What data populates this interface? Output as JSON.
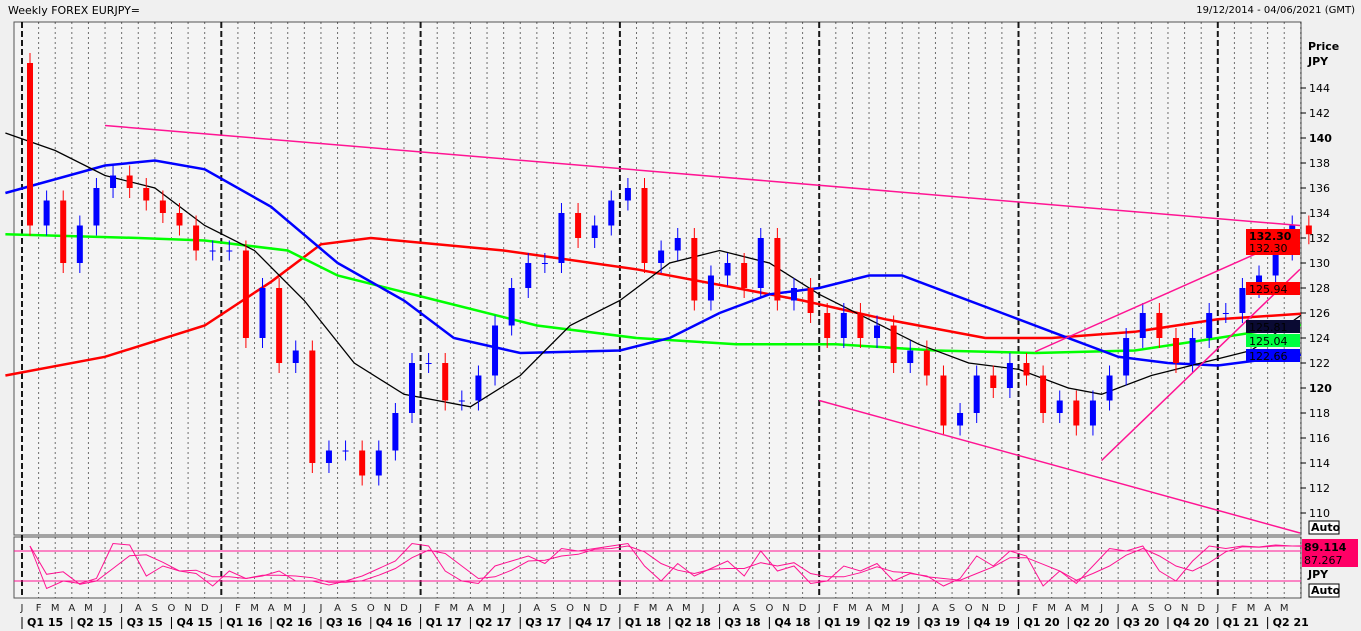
{
  "header": {
    "title": "Weekly FOREX EURJPY=",
    "date_range": "19/12/2014 - 04/06/2021 (GMT)"
  },
  "chart_data": {
    "type": "candlestick",
    "title": "Weekly FOREX EURJPY=",
    "ylabel": "Price",
    "yunit": "JPY",
    "ylim": [
      109,
      146
    ],
    "yticks": [
      110,
      112,
      114,
      116,
      118,
      120,
      122,
      124,
      126,
      128,
      130,
      132,
      134,
      136,
      138,
      140,
      142,
      144
    ],
    "yticks_bold": [
      120,
      140
    ],
    "grid": "vertical monthly",
    "months": [
      "2015-01",
      "2015-02",
      "2015-03",
      "2015-04",
      "2015-05",
      "2015-06",
      "2015-07",
      "2015-08",
      "2015-09",
      "2015-10",
      "2015-11",
      "2015-12",
      "2016-01",
      "2016-02",
      "2016-03",
      "2016-04",
      "2016-05",
      "2016-06",
      "2016-07",
      "2016-08",
      "2016-09",
      "2016-10",
      "2016-11",
      "2016-12",
      "2017-01",
      "2017-02",
      "2017-03",
      "2017-04",
      "2017-05",
      "2017-06",
      "2017-07",
      "2017-08",
      "2017-09",
      "2017-10",
      "2017-11",
      "2017-12",
      "2018-01",
      "2018-02",
      "2018-03",
      "2018-04",
      "2018-05",
      "2018-06",
      "2018-07",
      "2018-08",
      "2018-09",
      "2018-10",
      "2018-11",
      "2018-12",
      "2019-01",
      "2019-02",
      "2019-03",
      "2019-04",
      "2019-05",
      "2019-06",
      "2019-07",
      "2019-08",
      "2019-09",
      "2019-10",
      "2019-11",
      "2019-12",
      "2020-01",
      "2020-02",
      "2020-03",
      "2020-04",
      "2020-05",
      "2020-06",
      "2020-07",
      "2020-08",
      "2020-09",
      "2020-10",
      "2020-11",
      "2020-12",
      "2021-01",
      "2021-02",
      "2021-03",
      "2021-04",
      "2021-05",
      "2021-06"
    ],
    "start_open": 146,
    "closes": [
      133,
      135,
      130,
      133,
      136,
      137,
      136,
      135,
      134,
      133,
      131,
      131,
      131,
      124,
      128,
      122,
      123,
      114,
      115,
      115,
      113,
      115,
      118,
      122,
      122,
      119,
      119,
      121,
      125,
      128,
      130,
      130,
      134,
      132,
      133,
      135,
      136,
      130,
      131,
      132,
      127,
      129,
      130,
      128,
      132,
      127,
      128,
      126,
      124,
      126,
      124,
      125,
      122,
      123,
      121,
      117,
      118,
      121,
      120,
      122,
      121,
      118,
      119,
      117,
      119,
      121,
      124,
      126,
      124,
      122,
      124,
      126,
      126,
      128,
      129,
      131,
      133,
      132.3
    ],
    "series": [
      {
        "color": "#ff0000",
        "points": [
          [
            "2014-12",
            121
          ],
          [
            "2015-06",
            122.5
          ],
          [
            "2015-12",
            125
          ],
          [
            "2016-04",
            128.5
          ],
          [
            "2016-07",
            131.5
          ],
          [
            "2016-10",
            132
          ],
          [
            "2017-06",
            131
          ],
          [
            "2018-02",
            129.5
          ],
          [
            "2018-08",
            128
          ],
          [
            "2018-12",
            127
          ],
          [
            "2019-05",
            125.5
          ],
          [
            "2019-11",
            124
          ],
          [
            "2020-03",
            124
          ],
          [
            "2020-08",
            124.5
          ],
          [
            "2021-01",
            125.5
          ],
          [
            "2021-06",
            125.94
          ]
        ]
      },
      {
        "color": "#00ff00",
        "points": [
          [
            "2014-12",
            132.3
          ],
          [
            "2015-08",
            132
          ],
          [
            "2015-12",
            131.8
          ],
          [
            "2016-05",
            131
          ],
          [
            "2016-08",
            129
          ],
          [
            "2017-02",
            127
          ],
          [
            "2017-08",
            125
          ],
          [
            "2018-02",
            124
          ],
          [
            "2018-08",
            123.5
          ],
          [
            "2019-02",
            123.5
          ],
          [
            "2019-08",
            123
          ],
          [
            "2020-02",
            122.8
          ],
          [
            "2020-08",
            123
          ],
          [
            "2021-01",
            124
          ],
          [
            "2021-06",
            125.04
          ]
        ]
      },
      {
        "color": "#0000ff",
        "points": [
          [
            "2014-12",
            135.6
          ],
          [
            "2015-06",
            137.8
          ],
          [
            "2015-09",
            138.2
          ],
          [
            "2015-12",
            137.5
          ],
          [
            "2016-04",
            134.5
          ],
          [
            "2016-08",
            130
          ],
          [
            "2016-12",
            127
          ],
          [
            "2017-03",
            124
          ],
          [
            "2017-07",
            122.8
          ],
          [
            "2018-01",
            123
          ],
          [
            "2018-04",
            124
          ],
          [
            "2018-07",
            126
          ],
          [
            "2018-10",
            127.5
          ],
          [
            "2019-01",
            128
          ],
          [
            "2019-04",
            129
          ],
          [
            "2019-06",
            129
          ],
          [
            "2019-09",
            127.5
          ],
          [
            "2019-12",
            126
          ],
          [
            "2020-03",
            124.5
          ],
          [
            "2020-07",
            122.5
          ],
          [
            "2020-10",
            122
          ],
          [
            "2021-01",
            121.8
          ],
          [
            "2021-06",
            122.66
          ]
        ]
      },
      {
        "color": "#000000",
        "points": [
          [
            "2014-12",
            140.4
          ],
          [
            "2015-03",
            139
          ],
          [
            "2015-06",
            137
          ],
          [
            "2015-09",
            136
          ],
          [
            "2015-12",
            133
          ],
          [
            "2016-03",
            131
          ],
          [
            "2016-06",
            127
          ],
          [
            "2016-09",
            122
          ],
          [
            "2016-12",
            119.5
          ],
          [
            "2017-04",
            118.5
          ],
          [
            "2017-07",
            121
          ],
          [
            "2017-10",
            125
          ],
          [
            "2018-01",
            127
          ],
          [
            "2018-04",
            130
          ],
          [
            "2018-07",
            131
          ],
          [
            "2018-10",
            130
          ],
          [
            "2019-01",
            127.5
          ],
          [
            "2019-04",
            125.5
          ],
          [
            "2019-07",
            123.5
          ],
          [
            "2019-10",
            122
          ],
          [
            "2020-01",
            121.5
          ],
          [
            "2020-04",
            120
          ],
          [
            "2020-06",
            119.5
          ],
          [
            "2020-09",
            121
          ],
          [
            "2020-12",
            122
          ],
          [
            "2021-03",
            123
          ],
          [
            "2021-06",
            125.81
          ]
        ]
      }
    ],
    "trendlines": [
      {
        "color": "#ff1493",
        "from": [
          "2015-06",
          141
        ],
        "to": [
          "2021-06",
          133
        ]
      },
      {
        "color": "#ff1493",
        "from": [
          "2019-01",
          119
        ],
        "to": [
          "2021-06",
          108.4
        ]
      },
      {
        "color": "#ff1493",
        "from": [
          "2020-02",
          122.9
        ],
        "to": [
          "2021-06",
          132.3
        ]
      },
      {
        "color": "#ff1493",
        "from": [
          "2020-06",
          114.2
        ],
        "to": [
          "2021-06",
          129.5
        ]
      }
    ],
    "price_labels": [
      {
        "text": "132.30",
        "text2": "132.30",
        "bg": "#ff0000",
        "fg": "#000000",
        "value": 132.3
      },
      {
        "text": "125.94",
        "bg": "#ff0000",
        "fg": "#000000",
        "value": 125.94
      },
      {
        "text": "125.81",
        "bg": "#0a0a33",
        "fg": "#ffffff",
        "value": 125.81
      },
      {
        "text": "125.04",
        "bg": "#00ff40",
        "fg": "#000000",
        "value": 125.04
      },
      {
        "text": "122.66",
        "bg": "#0000ff",
        "fg": "#000066",
        "value": 122.66
      }
    ],
    "x_month_letters": [
      "J",
      "F",
      "M",
      "A",
      "M",
      "J",
      "J",
      "A",
      "S",
      "O",
      "N",
      "D"
    ],
    "x_quarters": [
      "Q1 15",
      "Q2 15",
      "Q3 15",
      "Q4 15",
      "Q1 16",
      "Q2 16",
      "Q3 16",
      "Q4 16",
      "Q1 17",
      "Q2 17",
      "Q3 17",
      "Q4 17",
      "Q1 18",
      "Q2 18",
      "Q3 18",
      "Q4 18",
      "Q1 19",
      "Q2 19",
      "Q3 19",
      "Q4 19",
      "Q1 20",
      "Q2 20",
      "Q3 20",
      "Q4 20",
      "Q1 21",
      "Q2 21"
    ],
    "indicator": {
      "color": "#ff1493",
      "levels": [
        80,
        20
      ],
      "last_values": [
        "89.114",
        "87.267"
      ],
      "unit": "JPY",
      "values": [
        90,
        5,
        20,
        15,
        25,
        95,
        92,
        30,
        50,
        40,
        35,
        10,
        40,
        25,
        30,
        40,
        20,
        20,
        12,
        20,
        30,
        45,
        60,
        95,
        90,
        40,
        20,
        15,
        50,
        60,
        70,
        55,
        85,
        80,
        85,
        90,
        95,
        50,
        20,
        55,
        30,
        45,
        60,
        30,
        80,
        40,
        50,
        15,
        20,
        50,
        40,
        55,
        20,
        35,
        30,
        10,
        25,
        70,
        50,
        80,
        70,
        10,
        40,
        15,
        50,
        85,
        80,
        90,
        40,
        20,
        60,
        90,
        85,
        90,
        88,
        92,
        90,
        89.114
      ]
    },
    "auto_label": "Auto",
    "price_label": "Price",
    "unit_label": "JPY"
  }
}
